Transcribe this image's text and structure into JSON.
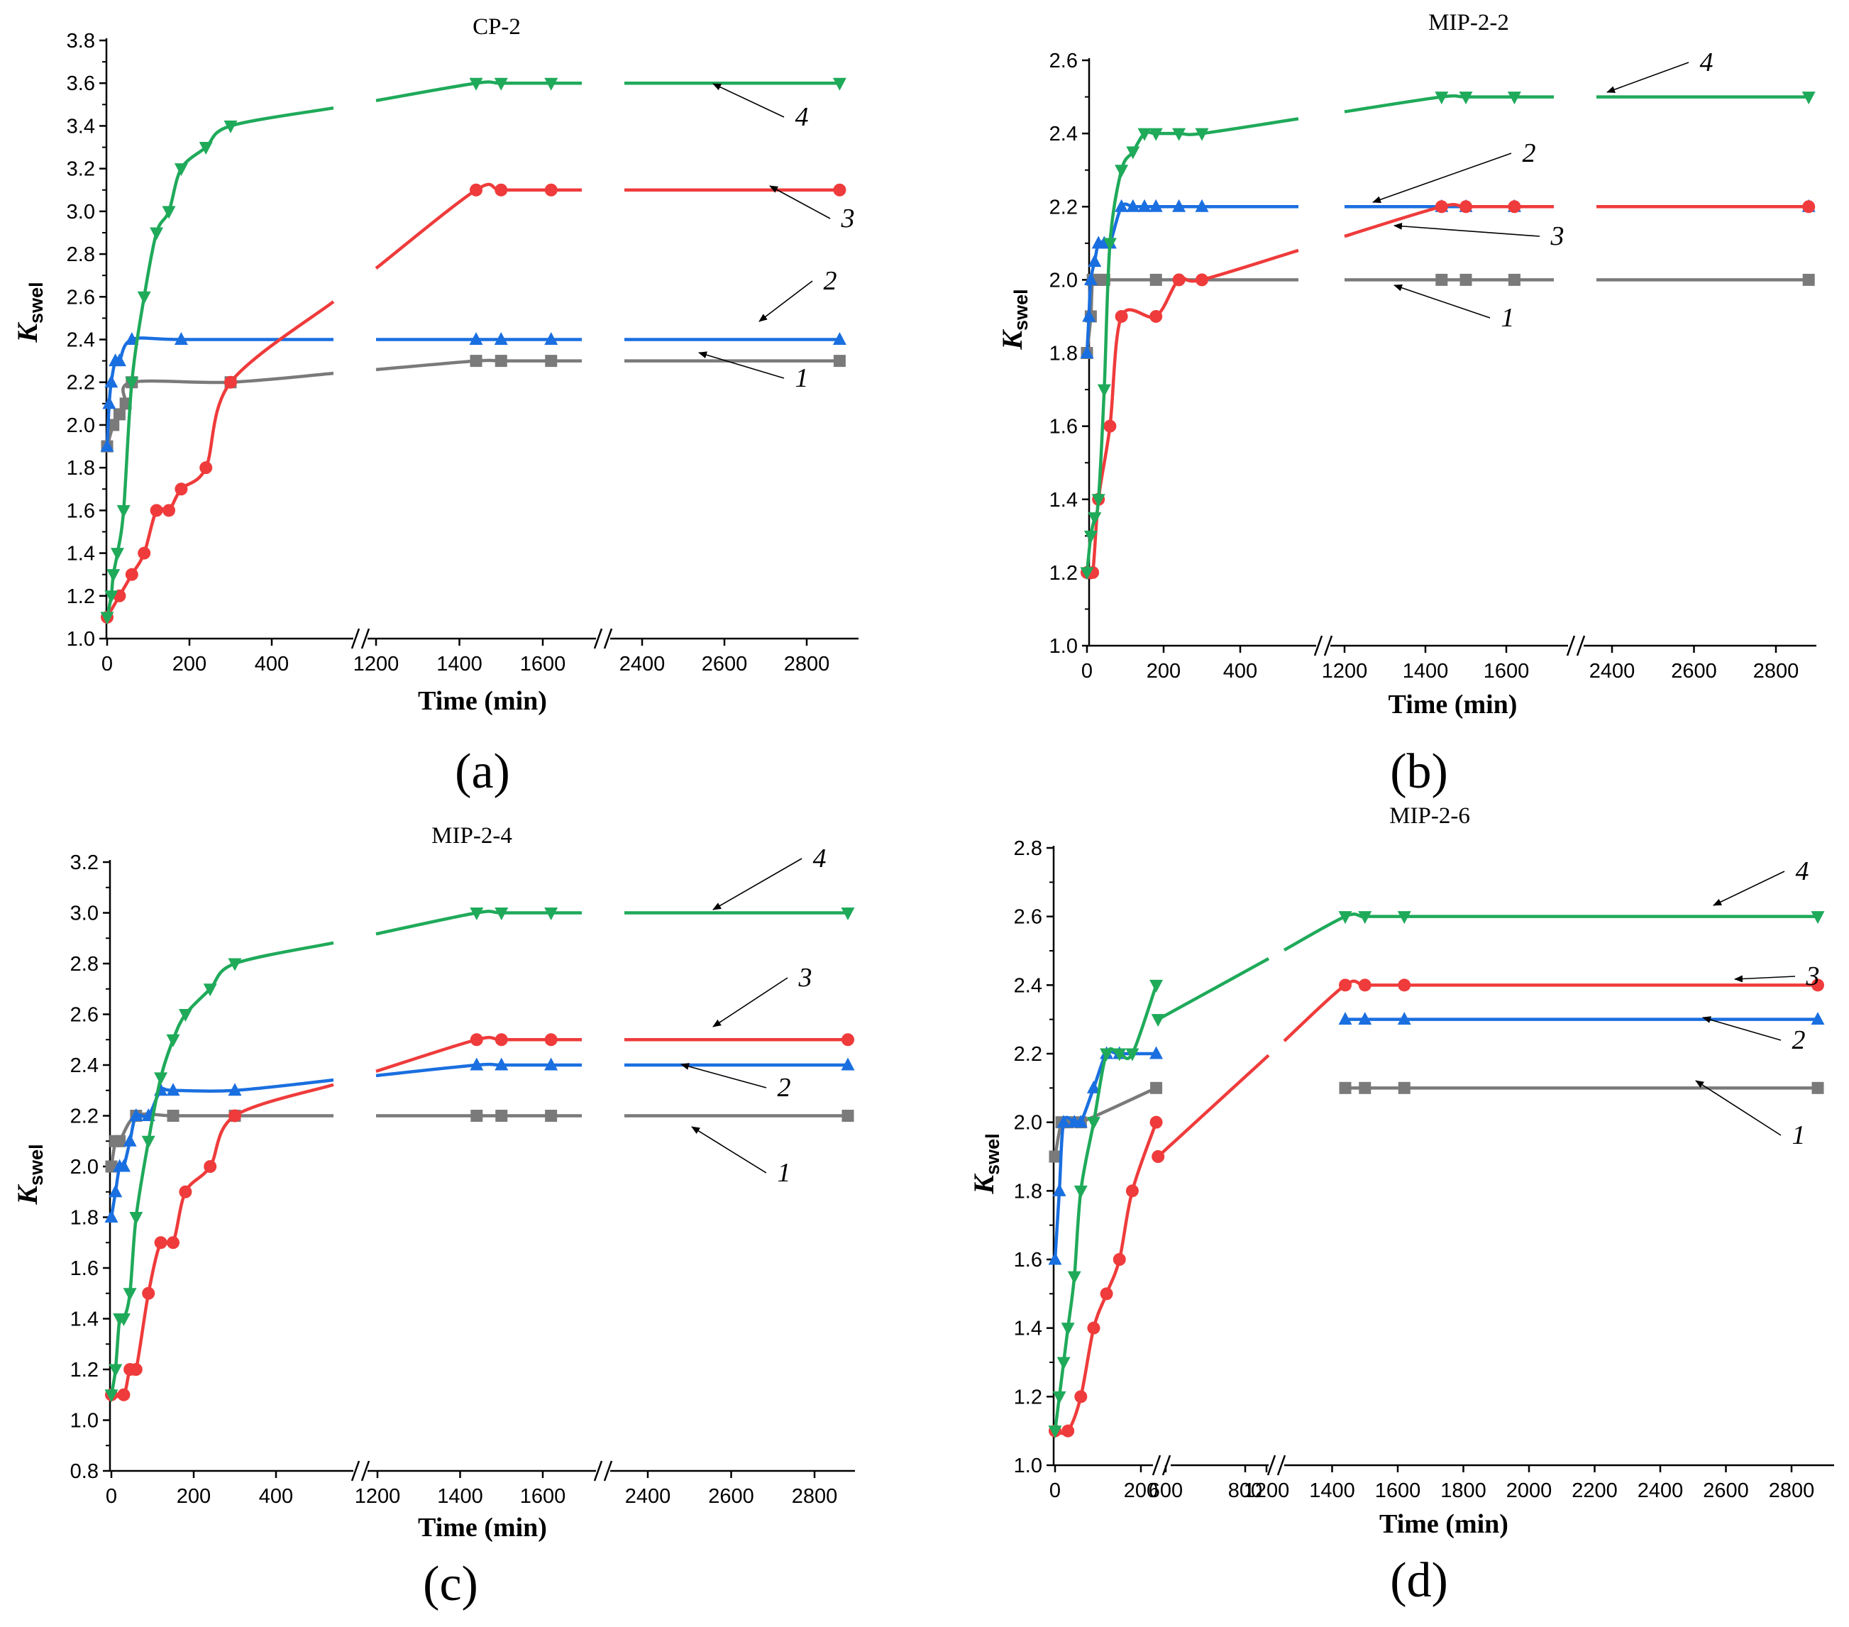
{
  "figure": {
    "x_axis_title": "Time (min)",
    "y_axis_title": "K",
    "y_axis_subscript": "swel"
  },
  "colors": {
    "series_1": "#7a7a7a",
    "series_2": "#1a6fe0",
    "series_3": "#ef3b3b",
    "series_4": "#1faa5a"
  },
  "chart_data": [
    {
      "type": "line",
      "title": "CP-2",
      "panel_label": "(a)",
      "xlabel": "Time (min)",
      "ylabel": "Kswel",
      "ylim": [
        1.0,
        3.8
      ],
      "y_ticks": [
        "1.0",
        "1.2",
        "1.4",
        "1.6",
        "1.8",
        "2.0",
        "2.2",
        "2.4",
        "2.6",
        "2.8",
        "3.0",
        "3.2",
        "3.4",
        "3.6",
        "3.8"
      ],
      "x_ticks": [
        "0",
        "200",
        "400",
        "1200",
        "1400",
        "1600",
        "2400",
        "2600",
        "2800"
      ],
      "series": [
        {
          "name": "1",
          "x": [
            0,
            15,
            30,
            45,
            60,
            300,
            1440,
            1500,
            1620,
            2880
          ],
          "values": [
            1.9,
            2.0,
            2.05,
            2.1,
            2.2,
            2.2,
            2.3,
            2.3,
            2.3,
            2.3
          ]
        },
        {
          "name": "2",
          "x": [
            0,
            5,
            10,
            20,
            30,
            60,
            180,
            1440,
            1500,
            1620,
            2880
          ],
          "values": [
            1.9,
            2.1,
            2.2,
            2.3,
            2.3,
            2.4,
            2.4,
            2.4,
            2.4,
            2.4,
            2.4
          ]
        },
        {
          "name": "3",
          "x": [
            0,
            30,
            60,
            90,
            120,
            150,
            180,
            240,
            300,
            1440,
            1500,
            1620,
            2880
          ],
          "values": [
            1.1,
            1.2,
            1.3,
            1.4,
            1.6,
            1.6,
            1.7,
            1.8,
            2.2,
            3.1,
            3.1,
            3.1,
            3.1
          ]
        },
        {
          "name": "4",
          "x": [
            0,
            10,
            15,
            25,
            40,
            60,
            90,
            120,
            150,
            180,
            240,
            300,
            1440,
            1500,
            1620,
            2880
          ],
          "values": [
            1.1,
            1.2,
            1.3,
            1.4,
            1.6,
            2.2,
            2.6,
            2.9,
            3.0,
            3.2,
            3.3,
            3.4,
            3.6,
            3.6,
            3.6,
            3.6
          ]
        }
      ]
    },
    {
      "type": "line",
      "title": "MIP-2-2",
      "panel_label": "(b)",
      "xlabel": "Time (min)",
      "ylabel": "Kswel",
      "ylim": [
        1.0,
        2.6
      ],
      "y_ticks": [
        "1.0",
        "1.2",
        "1.4",
        "1.6",
        "1.8",
        "2.0",
        "2.2",
        "2.4",
        "2.6"
      ],
      "x_ticks": [
        "0",
        "200",
        "400",
        "1200",
        "1400",
        "1600",
        "2400",
        "2600",
        "2800"
      ],
      "series": [
        {
          "name": "1",
          "x": [
            0,
            10,
            15,
            30,
            45,
            180,
            1440,
            1500,
            1620,
            2880
          ],
          "values": [
            1.8,
            1.9,
            2.0,
            2.0,
            2.0,
            2.0,
            2.0,
            2.0,
            2.0,
            2.0
          ]
        },
        {
          "name": "2",
          "x": [
            0,
            5,
            10,
            20,
            30,
            45,
            60,
            90,
            120,
            150,
            180,
            240,
            300,
            1440,
            1500,
            1620,
            2880
          ],
          "values": [
            1.8,
            1.9,
            2.0,
            2.05,
            2.1,
            2.1,
            2.1,
            2.2,
            2.2,
            2.2,
            2.2,
            2.2,
            2.2,
            2.2,
            2.2,
            2.2,
            2.2
          ]
        },
        {
          "name": "3",
          "x": [
            0,
            15,
            30,
            60,
            90,
            180,
            240,
            300,
            1440,
            1500,
            1620,
            2880
          ],
          "values": [
            1.2,
            1.2,
            1.4,
            1.6,
            1.9,
            1.9,
            2.0,
            2.0,
            2.2,
            2.2,
            2.2,
            2.2
          ]
        },
        {
          "name": "4",
          "x": [
            0,
            10,
            20,
            30,
            45,
            60,
            90,
            120,
            150,
            180,
            240,
            300,
            1440,
            1500,
            1620,
            2880
          ],
          "values": [
            1.2,
            1.3,
            1.35,
            1.4,
            1.7,
            2.1,
            2.3,
            2.35,
            2.4,
            2.4,
            2.4,
            2.4,
            2.5,
            2.5,
            2.5,
            2.5
          ]
        }
      ]
    },
    {
      "type": "line",
      "title": "MIP-2-4",
      "panel_label": "(c)",
      "xlabel": "Time (min)",
      "ylabel": "Kswel",
      "ylim": [
        0.8,
        3.2
      ],
      "y_ticks": [
        "0.8",
        "1.0",
        "1.2",
        "1.4",
        "1.6",
        "1.8",
        "2.0",
        "2.2",
        "2.4",
        "2.6",
        "2.8",
        "3.0",
        "3.2"
      ],
      "x_ticks": [
        "0",
        "200",
        "400",
        "1200",
        "1400",
        "1600",
        "2400",
        "2600",
        "2800"
      ],
      "series": [
        {
          "name": "1",
          "x": [
            0,
            10,
            20,
            60,
            150,
            300,
            1440,
            1500,
            1620,
            2880
          ],
          "values": [
            2.0,
            2.1,
            2.1,
            2.2,
            2.2,
            2.2,
            2.2,
            2.2,
            2.2,
            2.2
          ]
        },
        {
          "name": "2",
          "x": [
            0,
            10,
            20,
            30,
            45,
            60,
            90,
            120,
            150,
            300,
            1440,
            1500,
            1620,
            2880
          ],
          "values": [
            1.8,
            1.9,
            2.0,
            2.0,
            2.1,
            2.2,
            2.2,
            2.3,
            2.3,
            2.3,
            2.4,
            2.4,
            2.4,
            2.4
          ]
        },
        {
          "name": "3",
          "x": [
            0,
            30,
            45,
            60,
            90,
            120,
            150,
            180,
            240,
            300,
            1440,
            1500,
            1620,
            2880
          ],
          "values": [
            1.1,
            1.1,
            1.2,
            1.2,
            1.5,
            1.7,
            1.7,
            1.9,
            2.0,
            2.2,
            2.5,
            2.5,
            2.5,
            2.5
          ]
        },
        {
          "name": "4",
          "x": [
            0,
            10,
            20,
            30,
            45,
            60,
            90,
            120,
            150,
            180,
            240,
            300,
            1440,
            1500,
            1620,
            2880
          ],
          "values": [
            1.1,
            1.2,
            1.4,
            1.4,
            1.5,
            1.8,
            2.1,
            2.35,
            2.5,
            2.6,
            2.7,
            2.8,
            3.0,
            3.0,
            3.0,
            3.0
          ]
        }
      ]
    },
    {
      "type": "line",
      "title": "MIP-2-6",
      "panel_label": "(d)",
      "xlabel": "Time (min)",
      "ylabel": "Kswel",
      "ylim": [
        1.0,
        2.8
      ],
      "y_ticks": [
        "1.0",
        "1.2",
        "1.4",
        "1.6",
        "1.8",
        "2.0",
        "2.2",
        "2.4",
        "2.6",
        "2.8"
      ],
      "x_ticks": [
        "0",
        "200",
        "600",
        "800",
        "1200",
        "1400",
        "1600",
        "1800",
        "2000",
        "2200",
        "2400",
        "2600",
        "2800"
      ],
      "series": [
        {
          "name": "1",
          "x": [
            0,
            15,
            30,
            60,
            360,
            1440,
            1500,
            1620,
            2880
          ],
          "values": [
            1.9,
            2.0,
            2.0,
            2.0,
            2.1,
            2.1,
            2.1,
            2.1,
            2.1
          ]
        },
        {
          "name": "2",
          "x": [
            0,
            10,
            20,
            45,
            60,
            90,
            120,
            150,
            360,
            1440,
            1500,
            1620,
            2880
          ],
          "values": [
            1.6,
            1.8,
            2.0,
            2.0,
            2.0,
            2.1,
            2.2,
            2.2,
            2.2,
            2.3,
            2.3,
            2.3,
            2.3
          ]
        },
        {
          "name": "3",
          "x": [
            0,
            30,
            60,
            90,
            120,
            150,
            180,
            240,
            360,
            1440,
            1500,
            1620,
            2880
          ],
          "values": [
            1.1,
            1.1,
            1.2,
            1.4,
            1.5,
            1.6,
            1.8,
            1.9,
            2.0,
            2.4,
            2.4,
            2.4,
            2.4
          ]
        },
        {
          "name": "4",
          "x": [
            0,
            10,
            20,
            30,
            45,
            60,
            90,
            120,
            150,
            180,
            240,
            360,
            1440,
            1500,
            1620,
            2880
          ],
          "values": [
            1.1,
            1.2,
            1.3,
            1.4,
            1.55,
            1.8,
            2.0,
            2.2,
            2.2,
            2.2,
            2.3,
            2.4,
            2.6,
            2.6,
            2.6,
            2.6
          ]
        }
      ]
    }
  ]
}
